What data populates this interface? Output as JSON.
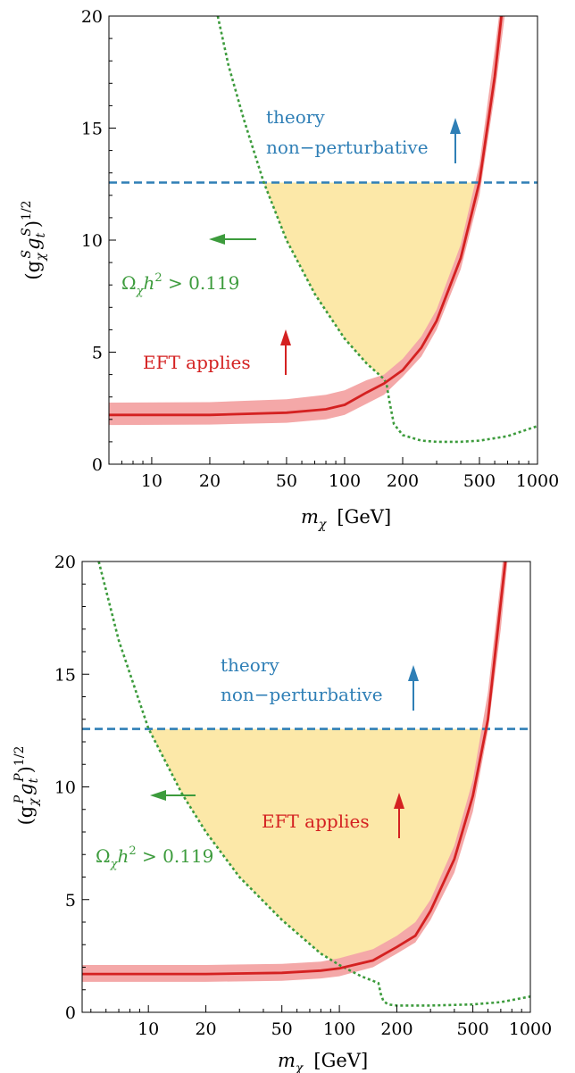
{
  "chart_data": [
    {
      "type": "line",
      "x_scale": "log",
      "xlim": [
        6,
        1000
      ],
      "ylim": [
        0,
        20
      ],
      "x_ticks": [
        10,
        20,
        50,
        100,
        200,
        500,
        1000
      ],
      "x_tick_labels": [
        "10",
        "20",
        "50",
        "100",
        "200",
        "500",
        "1000"
      ],
      "y_ticks": [
        0,
        5,
        10,
        15,
        20
      ],
      "y_tick_labels": [
        "0",
        "5",
        "10",
        "15",
        "20"
      ],
      "xlabel_main": "m",
      "xlabel_sub": "χ",
      "xlabel_unit": "[GeV]",
      "ylabel_open": "(g",
      "ylabel_sub1": "χ",
      "ylabel_sup1": "S",
      "ylabel_mid": "g",
      "ylabel_sub2": "t",
      "ylabel_sup2": "S",
      "ylabel_close": ")",
      "ylabel_pow": "1/2",
      "annotations": {
        "theory_line1": "theory",
        "theory_line2": "non−perturbative",
        "eft": "EFT applies",
        "omega_main": "Ω",
        "omega_sub": "χ",
        "omega_h": "h",
        "omega_sup": "2",
        "omega_rest": " > 0.119"
      },
      "series": [
        {
          "role": "eft-band",
          "color": "#f4a8a8",
          "x": [
            6,
            20,
            50,
            80,
            100,
            130,
            160,
            200,
            250,
            300,
            400,
            500,
            600,
            700
          ],
          "y_low": [
            1.75,
            1.77,
            1.85,
            2.0,
            2.2,
            2.7,
            3.1,
            3.9,
            4.8,
            6.0,
            8.7,
            12.0,
            16.5,
            21.0
          ],
          "y_high": [
            2.75,
            2.77,
            2.9,
            3.1,
            3.3,
            3.75,
            4.0,
            4.7,
            5.7,
            6.9,
            9.8,
            13.4,
            18.5,
            23.0
          ]
        },
        {
          "role": "eft-limit",
          "color": "#d42121",
          "x": [
            6,
            20,
            50,
            80,
            100,
            130,
            160,
            200,
            250,
            300,
            400,
            500,
            600,
            650
          ],
          "y": [
            2.2,
            2.2,
            2.3,
            2.45,
            2.65,
            3.2,
            3.6,
            4.2,
            5.2,
            6.4,
            9.2,
            12.6,
            17.3,
            20.0
          ]
        },
        {
          "role": "perturbativity",
          "color": "#2f7fb6",
          "x": [
            6,
            1000
          ],
          "y": [
            12.57,
            12.57
          ]
        },
        {
          "role": "relic",
          "color": "#3c9b3c",
          "x": [
            22,
            25,
            30,
            38,
            50,
            70,
            100,
            130,
            160,
            165,
            170,
            180,
            200,
            250,
            300,
            400,
            500,
            700,
            1000
          ],
          "y": [
            20.0,
            17.8,
            15.4,
            12.6,
            10.0,
            7.6,
            5.6,
            4.5,
            3.8,
            3.6,
            2.9,
            1.8,
            1.3,
            1.05,
            1.0,
            1.0,
            1.05,
            1.25,
            1.7
          ]
        }
      ],
      "arrow_colors": {
        "blue": "#2f7fb6",
        "red": "#d42121",
        "green": "#3c9b3c"
      },
      "fill_color": "#fce8a8"
    },
    {
      "type": "line",
      "x_scale": "log",
      "xlim": [
        4.5,
        1000
      ],
      "ylim": [
        0,
        20
      ],
      "x_ticks": [
        10,
        20,
        50,
        100,
        200,
        500,
        1000
      ],
      "x_tick_labels": [
        "10",
        "20",
        "50",
        "100",
        "200",
        "500",
        "1000"
      ],
      "y_ticks": [
        0,
        5,
        10,
        15,
        20
      ],
      "y_tick_labels": [
        "0",
        "5",
        "10",
        "15",
        "20"
      ],
      "xlabel_main": "m",
      "xlabel_sub": "χ",
      "xlabel_unit": "[GeV]",
      "ylabel_open": "(g",
      "ylabel_sub1": "χ",
      "ylabel_sup1": "P",
      "ylabel_mid": "g",
      "ylabel_sub2": "t",
      "ylabel_sup2": "P",
      "ylabel_close": ")",
      "ylabel_pow": "1/2",
      "annotations": {
        "theory_line1": "theory",
        "theory_line2": "non−perturbative",
        "eft": "EFT applies",
        "omega_main": "Ω",
        "omega_sub": "χ",
        "omega_h": "h",
        "omega_sup": "2",
        "omega_rest": " > 0.119"
      },
      "series": [
        {
          "role": "eft-band",
          "color": "#f4a8a8",
          "x": [
            4.5,
            20,
            50,
            80,
            100,
            150,
            200,
            250,
            300,
            400,
            500,
            600,
            700,
            800
          ],
          "y_low": [
            1.35,
            1.35,
            1.4,
            1.5,
            1.6,
            2.0,
            2.6,
            3.1,
            4.1,
            6.2,
            8.9,
            12.5,
            17.0,
            22.0
          ],
          "y_high": [
            2.1,
            2.1,
            2.15,
            2.25,
            2.4,
            2.8,
            3.4,
            4.0,
            5.0,
            7.4,
            10.3,
            14.2,
            19.2,
            24.0
          ]
        },
        {
          "role": "eft-limit",
          "color": "#d42121",
          "x": [
            4.5,
            20,
            50,
            80,
            100,
            150,
            200,
            250,
            300,
            400,
            500,
            600,
            700,
            740
          ],
          "y": [
            1.7,
            1.7,
            1.75,
            1.85,
            1.95,
            2.3,
            2.9,
            3.4,
            4.5,
            6.8,
            9.6,
            13.0,
            18.2,
            20.0
          ]
        },
        {
          "role": "perturbativity",
          "color": "#2f7fb6",
          "x": [
            4.5,
            1000
          ],
          "y": [
            12.57,
            12.57
          ]
        },
        {
          "role": "relic",
          "color": "#3c9b3c",
          "x": [
            5.5,
            7,
            10,
            15,
            20,
            30,
            50,
            80,
            100,
            130,
            160,
            165,
            170,
            180,
            200,
            300,
            500,
            700,
            1000
          ],
          "y": [
            20.0,
            16.5,
            12.6,
            9.7,
            8.0,
            6.0,
            4.1,
            2.6,
            2.1,
            1.6,
            1.3,
            0.8,
            0.5,
            0.35,
            0.3,
            0.3,
            0.35,
            0.45,
            0.7
          ]
        }
      ],
      "arrow_colors": {
        "blue": "#2f7fb6",
        "red": "#d42121",
        "green": "#3c9b3c"
      },
      "fill_color": "#fce8a8"
    }
  ]
}
